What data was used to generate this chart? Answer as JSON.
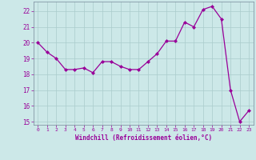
{
  "x": [
    0,
    1,
    2,
    3,
    4,
    5,
    6,
    7,
    8,
    9,
    10,
    11,
    12,
    13,
    14,
    15,
    16,
    17,
    18,
    19,
    20,
    21,
    22,
    23
  ],
  "y": [
    20.0,
    19.4,
    19.0,
    18.3,
    18.3,
    18.4,
    18.1,
    18.8,
    18.8,
    18.5,
    18.3,
    18.3,
    18.8,
    19.3,
    20.1,
    20.1,
    21.3,
    21.0,
    22.1,
    22.3,
    21.5,
    17.0,
    15.0,
    15.7
  ],
  "line_color": "#990099",
  "marker": "D",
  "marker_size": 2,
  "bg_color": "#cce8e8",
  "grid_color": "#aacccc",
  "xlabel": "Windchill (Refroidissement éolien,°C)",
  "xlabel_color": "#990099",
  "tick_color": "#990099",
  "ylim": [
    14.8,
    22.6
  ],
  "yticks": [
    15,
    16,
    17,
    18,
    19,
    20,
    21,
    22
  ],
  "xlim": [
    -0.5,
    23.5
  ],
  "xticks": [
    0,
    1,
    2,
    3,
    4,
    5,
    6,
    7,
    8,
    9,
    10,
    11,
    12,
    13,
    14,
    15,
    16,
    17,
    18,
    19,
    20,
    21,
    22,
    23
  ]
}
